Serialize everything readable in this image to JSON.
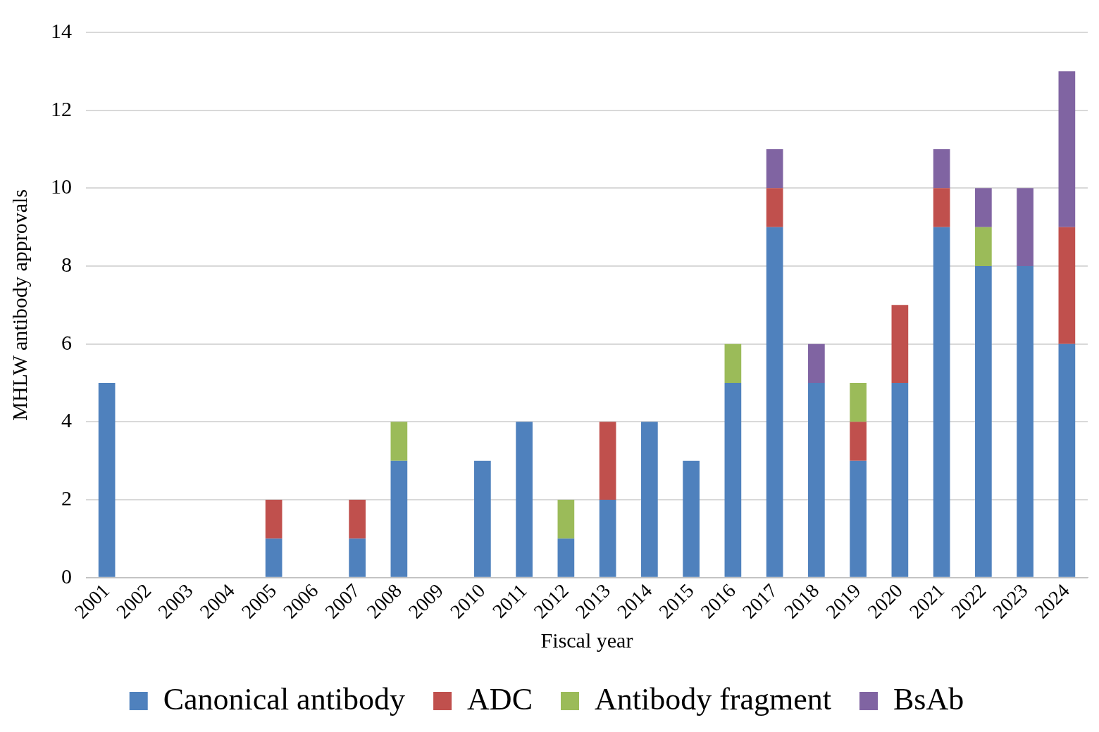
{
  "chart_data": {
    "type": "bar",
    "xlabel": "Fiscal year",
    "ylabel": "MHLW antibody approvals",
    "categories": [
      "2001",
      "2002",
      "2003",
      "2004",
      "2005",
      "2006",
      "2007",
      "2008",
      "2009",
      "2010",
      "2011",
      "2012",
      "2013",
      "2014",
      "2015",
      "2016",
      "2017",
      "2018",
      "2019",
      "2020",
      "2021",
      "2022",
      "2023",
      "2024"
    ],
    "series": [
      {
        "name": "Canonical antibody",
        "color": "#4f81bd",
        "values": [
          5,
          0,
          0,
          0,
          1,
          0,
          1,
          3,
          0,
          3,
          4,
          1,
          2,
          4,
          3,
          5,
          9,
          5,
          3,
          5,
          9,
          8,
          8,
          6
        ]
      },
      {
        "name": "ADC",
        "color": "#c0504d",
        "values": [
          0,
          0,
          0,
          0,
          1,
          0,
          1,
          0,
          0,
          0,
          0,
          0,
          2,
          0,
          0,
          0,
          1,
          0,
          1,
          2,
          1,
          0,
          0,
          3
        ]
      },
      {
        "name": "Antibody fragment",
        "color": "#9bbb59",
        "values": [
          0,
          0,
          0,
          0,
          0,
          0,
          0,
          1,
          0,
          0,
          0,
          1,
          0,
          0,
          0,
          1,
          0,
          0,
          1,
          0,
          0,
          1,
          0,
          0
        ]
      },
      {
        "name": "BsAb",
        "color": "#8064a2",
        "values": [
          0,
          0,
          0,
          0,
          0,
          0,
          0,
          0,
          0,
          0,
          0,
          0,
          0,
          0,
          0,
          0,
          1,
          1,
          0,
          0,
          1,
          1,
          2,
          4
        ]
      }
    ],
    "stacked": true,
    "ylim": [
      0,
      14
    ],
    "yticks": [
      0,
      2,
      4,
      6,
      8,
      10,
      12,
      14
    ],
    "grid": "y",
    "legend": "bottom"
  }
}
